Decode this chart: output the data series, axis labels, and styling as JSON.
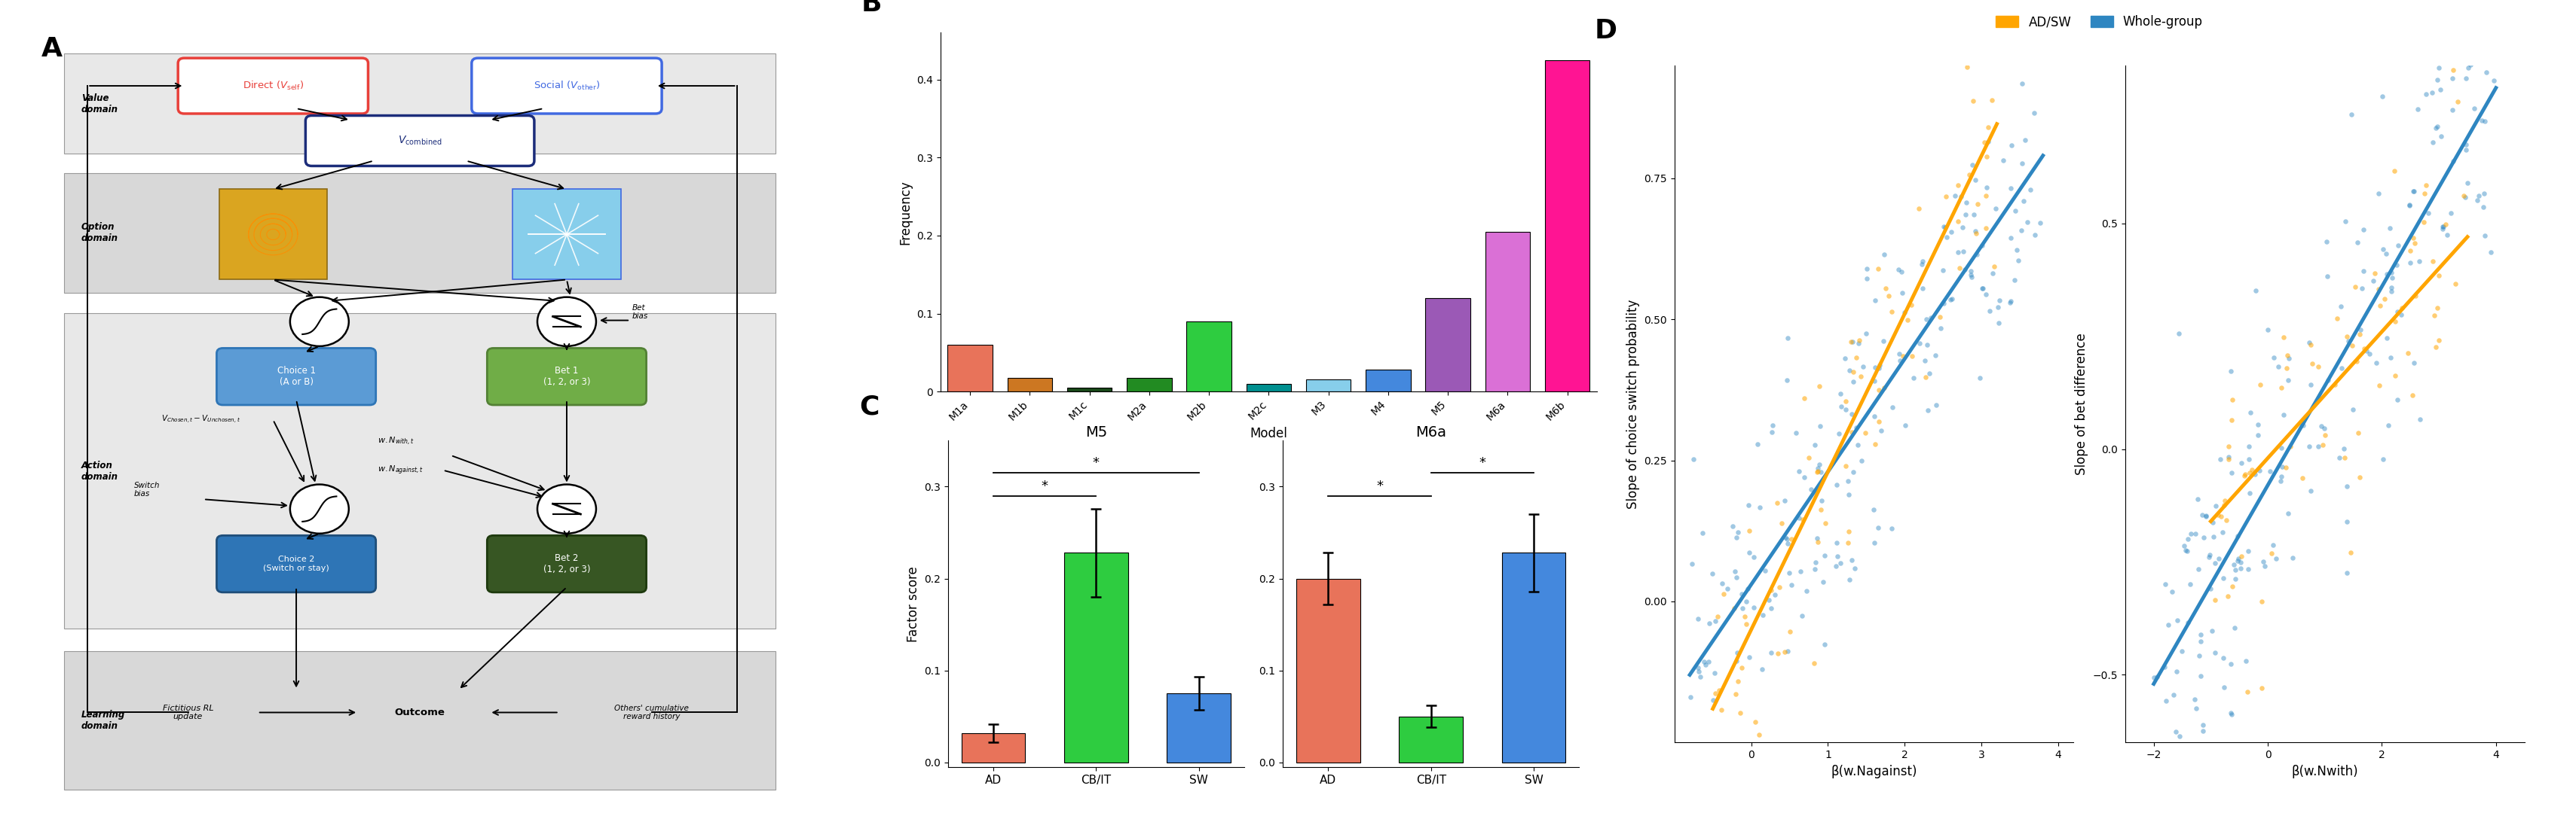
{
  "panel_B": {
    "models": [
      "M1a",
      "M1b",
      "M1c",
      "M2a",
      "M2b",
      "M2c",
      "M3",
      "M4",
      "M5",
      "M6a",
      "M6b"
    ],
    "frequencies": [
      0.06,
      0.018,
      0.005,
      0.018,
      0.09,
      0.01,
      0.016,
      0.028,
      0.12,
      0.205,
      0.425
    ],
    "colors": [
      "#E8735A",
      "#CC7722",
      "#1A4A1A",
      "#228B22",
      "#2ECC40",
      "#009090",
      "#87CEEB",
      "#4488DD",
      "#9B59B6",
      "#DA70D6",
      "#FF1493"
    ],
    "xlabel": "Model",
    "ylabel": "Frequency",
    "yticks": [
      0.0,
      0.1,
      0.2,
      0.3,
      0.4
    ]
  },
  "panel_C": {
    "M5": {
      "categories": [
        "AD",
        "CB/IT",
        "SW"
      ],
      "values": [
        0.032,
        0.228,
        0.075
      ],
      "errors": [
        0.01,
        0.048,
        0.018
      ],
      "colors": [
        "#E8735A",
        "#2ECC40",
        "#4488DD"
      ],
      "title": "M5"
    },
    "M6a": {
      "categories": [
        "AD",
        "CB/IT",
        "SW"
      ],
      "values": [
        0.2,
        0.05,
        0.228
      ],
      "errors": [
        0.028,
        0.012,
        0.042
      ],
      "colors": [
        "#E8735A",
        "#2ECC40",
        "#4488DD"
      ],
      "title": "M6a"
    },
    "ylabel": "Factor score",
    "yticks": [
      0.0,
      0.1,
      0.2,
      0.3
    ]
  },
  "panel_D": {
    "left_plot": {
      "xlabel": "β(w.Nagainst)",
      "ylabel": "Slope of choice switch probability",
      "yticks": [
        0.0,
        0.25,
        0.5,
        0.75
      ],
      "xticks": [
        0,
        1,
        2,
        3,
        4
      ],
      "xlim": [
        -1.0,
        4.2
      ],
      "ylim": [
        -0.25,
        0.95
      ]
    },
    "right_plot": {
      "xlabel": "β(w.Nwith)",
      "ylabel": "Slope of bet difference",
      "yticks": [
        -0.5,
        0.0,
        0.5
      ],
      "xticks": [
        -2,
        0,
        2,
        4
      ],
      "xlim": [
        -2.5,
        4.5
      ],
      "ylim": [
        -0.65,
        0.85
      ]
    },
    "orange_color": "#FFA500",
    "blue_color": "#2E86C1",
    "legend_labels": [
      "AD/SW",
      "Whole-group"
    ]
  }
}
